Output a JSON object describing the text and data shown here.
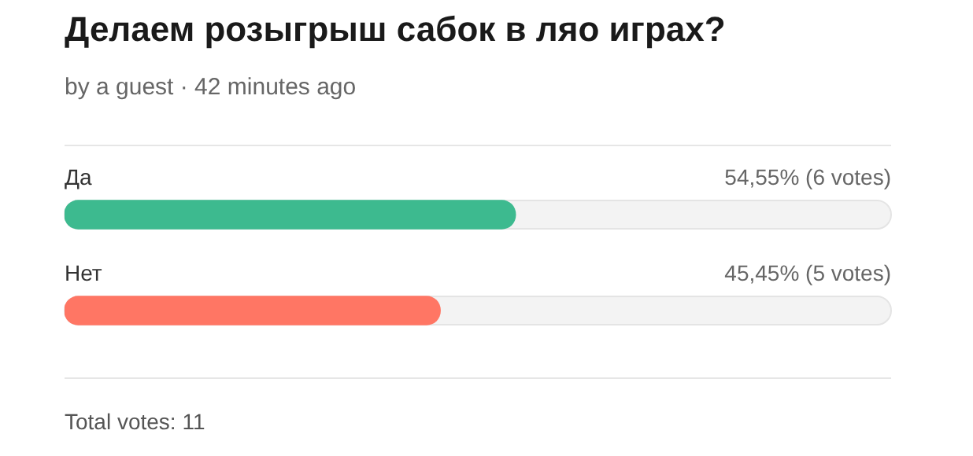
{
  "chart_data": {
    "type": "bar",
    "orientation": "horizontal",
    "title": "Делаем розыгрыш сабок в ляо играх?",
    "subtitle": "by a guest · 42 minutes ago",
    "categories": [
      "Да",
      "Нет"
    ],
    "values": [
      54.55,
      45.45
    ],
    "colors": [
      "#3dba8f",
      "#ff7664"
    ],
    "value_labels": [
      "54,55% (6 votes)",
      "45,45% (5 votes)"
    ],
    "xlim": [
      0,
      100
    ],
    "tick_labels": false,
    "legend": false,
    "annotations": [
      "Total votes: 11"
    ]
  }
}
